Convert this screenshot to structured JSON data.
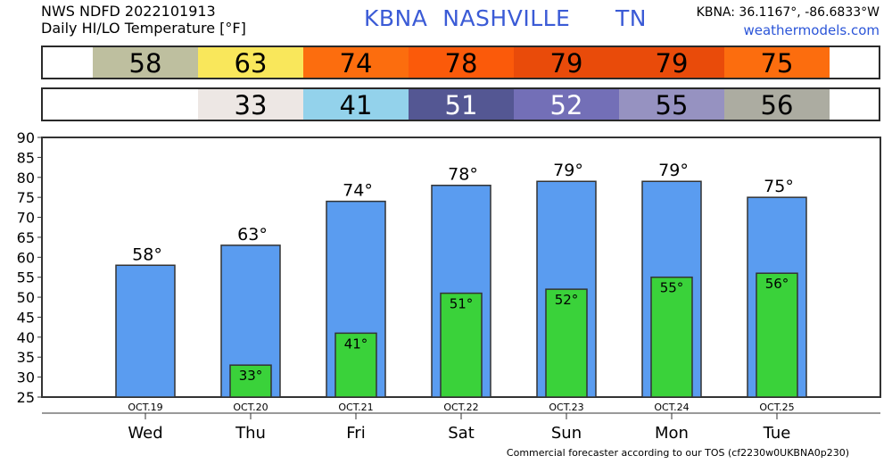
{
  "header": {
    "line1": "NWS NDFD 2022101913",
    "line2": "Daily HI/LO Temperature [°F]",
    "station": "KBNA  NASHVILLE      TN",
    "coords": "KBNA: 36.1167°, -86.6833°W",
    "site": "weathermodels.com"
  },
  "hi_strip": [
    {
      "value": "58",
      "color": "#bebf9f"
    },
    {
      "value": "63",
      "color": "#f9e75b"
    },
    {
      "value": "74",
      "color": "#fc6d0e"
    },
    {
      "value": "78",
      "color": "#fb5a0a"
    },
    {
      "value": "79",
      "color": "#e94b0a"
    },
    {
      "value": "79",
      "color": "#e94b0a"
    },
    {
      "value": "75",
      "color": "#fc6d0e"
    }
  ],
  "lo_strip": [
    {
      "value": "",
      "color": "#ffffff"
    },
    {
      "value": "33",
      "color": "#ede7e4"
    },
    {
      "value": "41",
      "color": "#93d2eb"
    },
    {
      "value": "51",
      "color": "#545793",
      "text_color": "#ffffff"
    },
    {
      "value": "52",
      "color": "#736fb7",
      "text_color": "#ffffff"
    },
    {
      "value": "55",
      "color": "#9692c1"
    },
    {
      "value": "56",
      "color": "#acaca1"
    }
  ],
  "chart_data": {
    "type": "bar",
    "categories": [
      "Wed",
      "Thu",
      "Fri",
      "Sat",
      "Sun",
      "Mon",
      "Tue"
    ],
    "dates": [
      "OCT.19",
      "OCT.20",
      "OCT.21",
      "OCT.22",
      "OCT.23",
      "OCT.24",
      "OCT.25"
    ],
    "series": [
      {
        "name": "HI",
        "values": [
          58,
          63,
          74,
          78,
          79,
          79,
          75
        ],
        "color": "#5a9cf0"
      },
      {
        "name": "LO",
        "values": [
          null,
          33,
          41,
          51,
          52,
          55,
          56
        ],
        "color": "#3ad23a"
      }
    ],
    "ylim": [
      25,
      90
    ],
    "yticks": [
      25,
      30,
      35,
      40,
      45,
      50,
      55,
      60,
      65,
      70,
      75,
      80,
      85,
      90
    ],
    "grid": false,
    "degree_suffix": "°"
  },
  "footer": "Commercial forecaster according to our TOS (cf2230w0UKBNA0p230)"
}
